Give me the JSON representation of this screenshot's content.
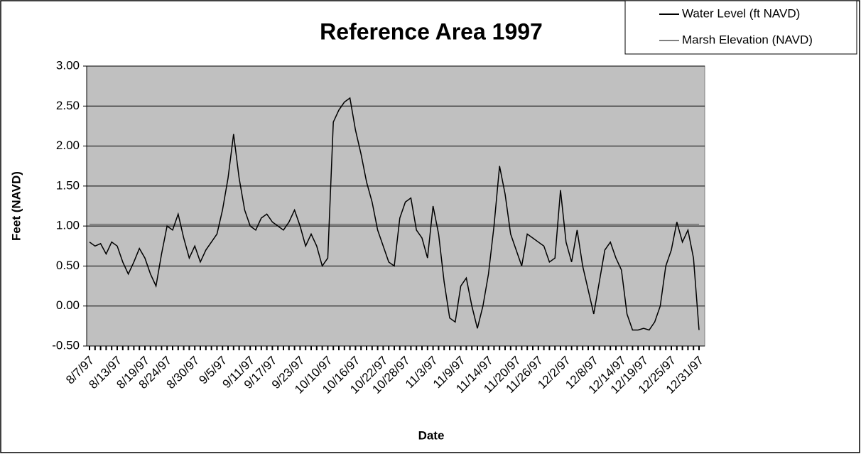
{
  "chart_data": {
    "type": "line",
    "title": "Reference Area 1997",
    "x_label": "Date",
    "y_label": "Feet (NAVD)",
    "categories": [
      "8/7/97",
      null,
      null,
      null,
      null,
      "8/13/97",
      null,
      null,
      null,
      null,
      "8/19/97",
      null,
      null,
      null,
      "8/24/97",
      null,
      null,
      null,
      null,
      "8/30/97",
      null,
      null,
      null,
      null,
      "9/5/97",
      null,
      null,
      null,
      null,
      "9/11/97",
      null,
      null,
      null,
      "9/17/97",
      null,
      null,
      null,
      null,
      "9/23/97",
      null,
      null,
      null,
      null,
      "10/10/97",
      null,
      null,
      null,
      null,
      "10/16/97",
      null,
      null,
      null,
      null,
      "10/22/97",
      null,
      null,
      null,
      "10/28/97",
      null,
      null,
      null,
      null,
      "11/3/97",
      null,
      null,
      null,
      null,
      "11/9/97",
      null,
      null,
      null,
      null,
      "11/14/97",
      null,
      null,
      null,
      null,
      "11/20/97",
      null,
      null,
      null,
      "11/26/97",
      null,
      null,
      null,
      null,
      "12/2/97",
      null,
      null,
      null,
      null,
      "12/8/97",
      null,
      null,
      null,
      null,
      "12/14/97",
      null,
      null,
      null,
      "12/19/97",
      null,
      null,
      null,
      null,
      "12/25/97",
      null,
      null,
      null,
      null,
      "12/31/97"
    ],
    "series": [
      {
        "name": "Water Level (ft NAVD)",
        "color": "#000000",
        "values": [
          0.8,
          0.75,
          0.78,
          0.65,
          0.8,
          0.75,
          0.55,
          0.4,
          0.55,
          0.72,
          0.6,
          0.4,
          0.25,
          0.65,
          1.0,
          0.95,
          1.15,
          0.85,
          0.6,
          0.75,
          0.55,
          0.7,
          0.8,
          0.9,
          1.2,
          1.6,
          2.15,
          1.6,
          1.2,
          1.0,
          0.95,
          1.1,
          1.15,
          1.05,
          1.0,
          0.95,
          1.05,
          1.2,
          1.0,
          0.75,
          0.9,
          0.75,
          0.5,
          0.6,
          2.3,
          2.45,
          2.55,
          2.6,
          2.2,
          1.9,
          1.55,
          1.3,
          0.95,
          0.75,
          0.55,
          0.5,
          1.1,
          1.3,
          1.35,
          0.95,
          0.85,
          0.6,
          1.25,
          0.9,
          0.3,
          -0.15,
          -0.2,
          0.25,
          0.35,
          0.0,
          -0.28,
          0.0,
          0.4,
          1.0,
          1.75,
          1.4,
          0.9,
          0.7,
          0.5,
          0.9,
          0.85,
          0.8,
          0.75,
          0.55,
          0.6,
          1.45,
          0.8,
          0.55,
          0.95,
          0.5,
          0.2,
          -0.1,
          0.3,
          0.7,
          0.8,
          0.6,
          0.45,
          -0.1,
          -0.3,
          -0.3,
          -0.28,
          -0.3,
          -0.2,
          0.0,
          0.5,
          0.7,
          1.05,
          0.8,
          0.95,
          0.6,
          -0.3
        ]
      },
      {
        "name": "Marsh Elevation (NAVD)",
        "color": "#808080",
        "values": [
          1.02,
          1.02,
          1.02,
          1.02,
          1.02,
          1.02,
          1.02,
          1.02,
          1.02,
          1.02,
          1.02,
          1.02,
          1.02,
          1.02,
          1.02,
          1.02,
          1.02,
          1.02,
          1.02,
          1.02,
          1.02,
          1.02,
          1.02,
          1.02,
          1.02,
          1.02,
          1.02,
          1.02,
          1.02,
          1.02,
          1.02,
          1.02,
          1.02,
          1.02,
          1.02,
          1.02,
          1.02,
          1.02,
          1.02,
          1.02,
          1.02,
          1.02,
          1.02,
          1.02,
          1.02,
          1.02,
          1.02,
          1.02,
          1.02,
          1.02,
          1.02,
          1.02,
          1.02,
          1.02,
          1.02,
          1.02,
          1.02,
          1.02,
          1.02,
          1.02,
          1.02,
          1.02,
          1.02,
          1.02,
          1.02,
          1.02,
          1.02,
          1.02,
          1.02,
          1.02,
          1.02,
          1.02,
          1.02,
          1.02,
          1.02,
          1.02,
          1.02,
          1.02,
          1.02,
          1.02,
          1.02,
          1.02,
          1.02,
          1.02,
          1.02,
          1.02,
          1.02,
          1.02,
          1.02,
          1.02,
          1.02,
          1.02,
          1.02,
          1.02,
          1.02,
          1.02,
          1.02,
          1.02,
          1.02,
          1.02,
          1.02,
          1.02,
          1.02,
          1.02,
          1.02,
          1.02,
          1.02,
          1.02,
          1.02,
          1.02,
          1.02
        ]
      }
    ],
    "ylim": [
      -0.5,
      3
    ],
    "yticks": [
      {
        "value": -0.5,
        "label": "-0.50"
      },
      {
        "value": 0,
        "label": "0.00"
      },
      {
        "value": 0.5,
        "label": "0.50"
      },
      {
        "value": 1,
        "label": "1.00"
      },
      {
        "value": 1.5,
        "label": "1.50"
      },
      {
        "value": 2,
        "label": "2.00"
      },
      {
        "value": 2.5,
        "label": "2.50"
      },
      {
        "value": 3,
        "label": "3.00"
      }
    ],
    "grid": true,
    "plot_background": "#c0c0c0",
    "legend": "top-right"
  }
}
